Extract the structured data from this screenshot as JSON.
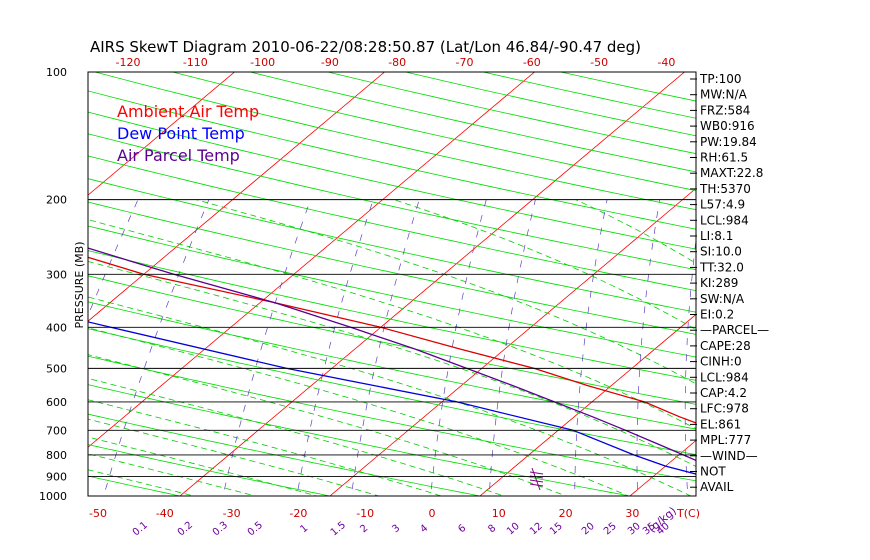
{
  "chart_data": {
    "type": "line",
    "title": "AIRS SkewT Diagram 2010-06-22/08:28:50.87 (Lat/Lon 46.84/-90.47 deg)",
    "ylabel": "PRESSURE (MB)",
    "y_scale": "log",
    "ylim": [
      1000,
      100
    ],
    "pressure_ticks": [
      100,
      200,
      300,
      400,
      500,
      600,
      700,
      800,
      900,
      1000
    ],
    "bottom_temp_ticks": [
      "-50",
      "-40",
      "-30",
      "-20",
      "-10",
      "0",
      "10",
      "20",
      "30"
    ],
    "top_temp_ticks": [
      "-120",
      "-110",
      "-100",
      "-90",
      "-80",
      "-70",
      "-60",
      "-50",
      "-40"
    ],
    "bottom_axis_unit": "T(C)",
    "mixing_ratio_labels": [
      "0.1",
      "0.2",
      "0.3",
      "0.5",
      "1",
      "1.5",
      "2",
      "3",
      "4",
      "6",
      "8",
      "10",
      "12",
      "15",
      "20",
      "25",
      "30",
      "35",
      "40"
    ],
    "mixing_ratio_unit": "(g/kg)",
    "legend": [
      {
        "label": "Ambient Air Temp",
        "color": "#ff0000"
      },
      {
        "label": "Dew Point Temp",
        "color": "#0000ff"
      },
      {
        "label": "Air Parcel Temp",
        "color": "#5a0090"
      }
    ],
    "series": [
      {
        "name": "Ambient Air Temp",
        "color": "#dd0000",
        "points": [
          [
            1000,
            20.4
          ],
          [
            970,
            19
          ],
          [
            950,
            18
          ],
          [
            900,
            16.5
          ],
          [
            850,
            15.5
          ],
          [
            800,
            14.2
          ],
          [
            700,
            10.5
          ],
          [
            650,
            7
          ],
          [
            600,
            3.5
          ],
          [
            550,
            -1.5
          ],
          [
            500,
            -6.5
          ],
          [
            450,
            -13
          ],
          [
            400,
            -20
          ],
          [
            350,
            -29
          ],
          [
            300,
            -40
          ],
          [
            250,
            -50
          ],
          [
            200,
            -55
          ],
          [
            150,
            -58
          ],
          [
            100,
            -62
          ]
        ]
      },
      {
        "name": "Dew Point Temp",
        "color": "#0000dd",
        "points": [
          [
            1000,
            20.4
          ],
          [
            950,
            15
          ],
          [
            900,
            13.5
          ],
          [
            850,
            10
          ],
          [
            800,
            7
          ],
          [
            700,
            1
          ],
          [
            600,
            -9
          ],
          [
            500,
            -23
          ],
          [
            400,
            -38
          ],
          [
            300,
            -57
          ],
          [
            250,
            -67
          ],
          [
            200,
            -79
          ],
          [
            150,
            -80
          ],
          [
            100,
            -82
          ]
        ]
      },
      {
        "name": "Air Parcel Temp",
        "color": "#5a0090",
        "points": [
          [
            1000,
            20.4
          ],
          [
            950,
            17.6
          ],
          [
            900,
            15.3
          ],
          [
            850,
            12.9
          ],
          [
            800,
            10.3
          ],
          [
            750,
            7.5
          ],
          [
            700,
            4.5
          ],
          [
            650,
            1.2
          ],
          [
            600,
            -2.5
          ],
          [
            550,
            -6.5
          ],
          [
            500,
            -11
          ],
          [
            450,
            -16
          ],
          [
            400,
            -22
          ],
          [
            350,
            -29
          ],
          [
            300,
            -38
          ],
          [
            250,
            -48
          ],
          [
            200,
            -59
          ],
          [
            170,
            -67
          ],
          [
            150,
            -72
          ],
          [
            125,
            -80
          ],
          [
            100,
            -88
          ]
        ]
      }
    ]
  },
  "panel": {
    "items": [
      "TP:100",
      "MW:N/A",
      "FRZ:584",
      "WB0:916",
      "PW:19.84",
      "RH:61.5",
      "MAXT:22.8",
      "TH:5370",
      "L57:4.9",
      "LCL:984",
      "LI:8.1",
      "SI:10.0",
      "TT:32.0",
      "KI:289",
      "SW:N/A",
      "EI:0.2",
      "—PARCEL—",
      "CAPE:28",
      "CINH:0",
      "LCL:984",
      "CAP:4.2",
      "LFC:978",
      "EL:861",
      "MPL:777",
      "—WIND—",
      "NOT",
      "AVAIL"
    ]
  },
  "colors": {
    "isotherm": "#ff0000",
    "dry_adiabat": "#00dd00",
    "moist_adiabat": "#00cc00",
    "mixing_ratio": "#6040c0",
    "axis_labels": "#cc0000",
    "mixing_labels": "#7000a0",
    "text": "#000000",
    "wind_barb": "#800080"
  }
}
